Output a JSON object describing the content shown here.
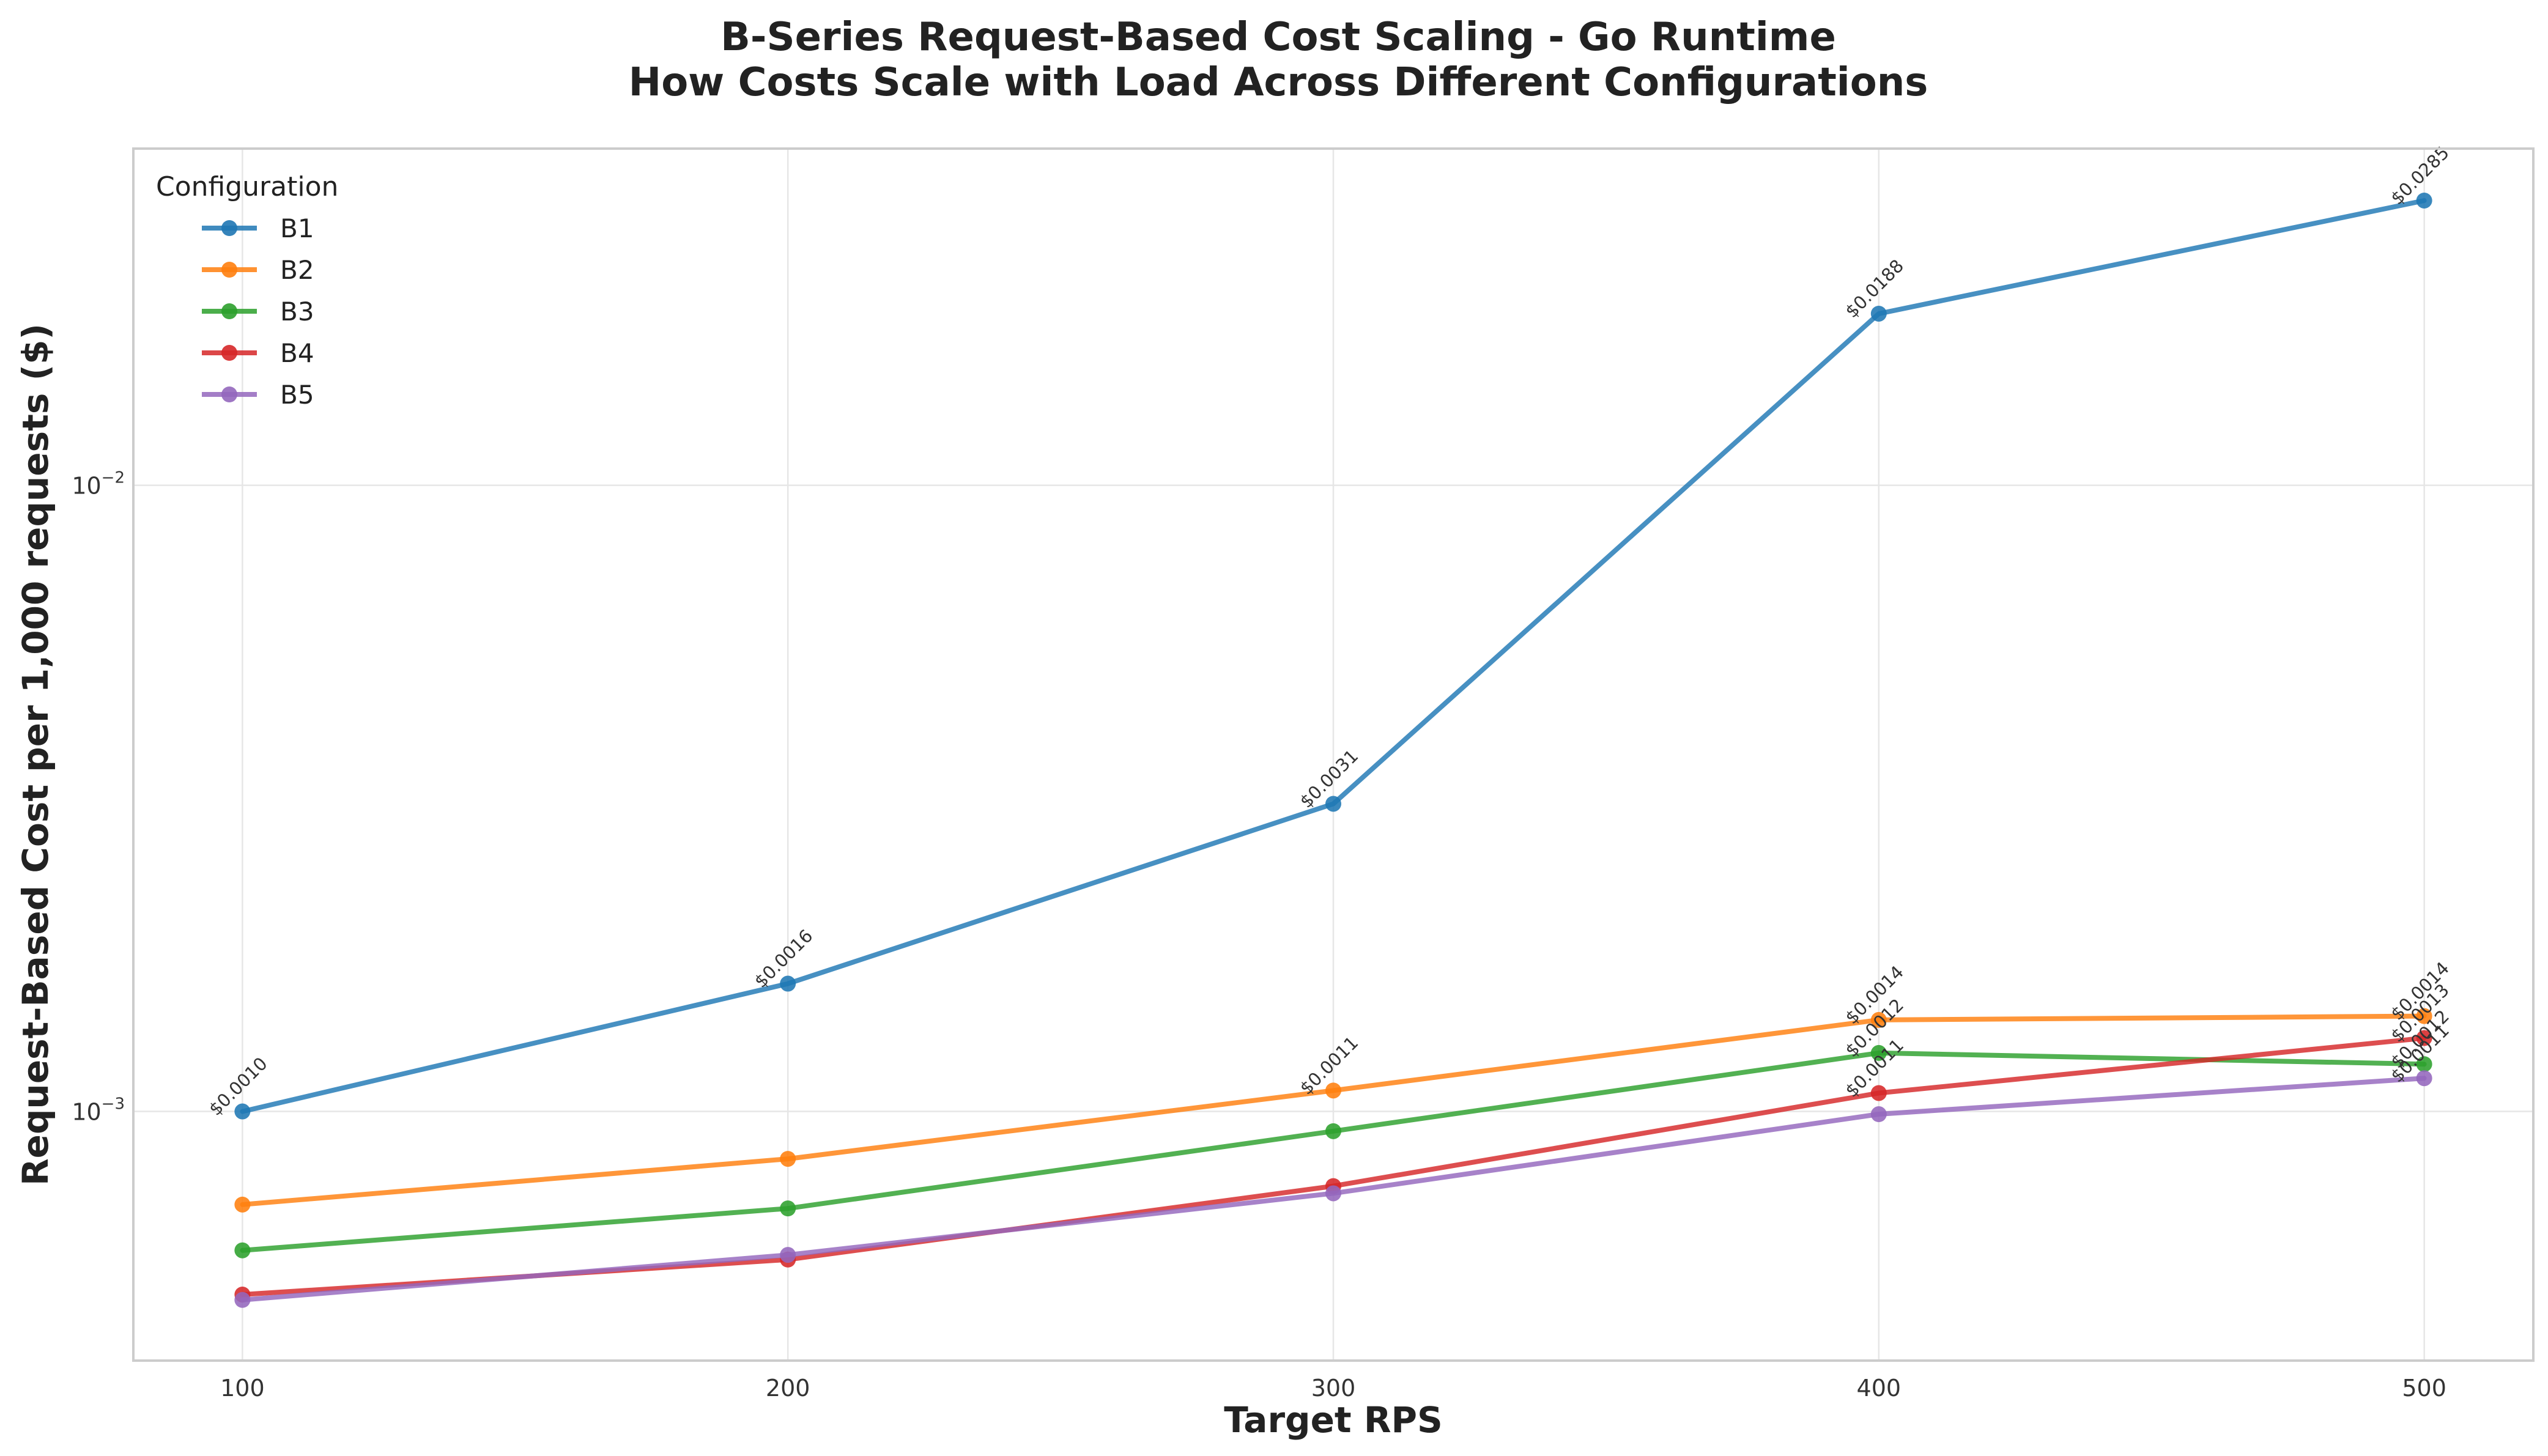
{
  "chart_data": {
    "type": "line",
    "title": "B-Series Request-Based Cost Scaling - Go Runtime",
    "subtitle": "How Costs Scale with Load Across Different Configurations",
    "xlabel": "Target RPS",
    "ylabel": "Request-Based Cost per 1,000 requests ($)",
    "x": [
      100,
      200,
      300,
      400,
      500
    ],
    "xlim": [
      80,
      520
    ],
    "ylim": [
      0.0004,
      0.0345
    ],
    "yscale": "log",
    "grid": true,
    "legend": {
      "title": "Configuration",
      "placement": "top-left"
    },
    "x_ticks": [
      {
        "value": 100,
        "label": "100"
      },
      {
        "value": 200,
        "label": "200"
      },
      {
        "value": 300,
        "label": "300"
      },
      {
        "value": 400,
        "label": "400"
      },
      {
        "value": 500,
        "label": "500"
      }
    ],
    "y_ticks": [
      {
        "value": 0.001,
        "base": "10",
        "exp": "−3"
      },
      {
        "value": 0.01,
        "base": "10",
        "exp": "−2"
      }
    ],
    "series": [
      {
        "name": "B1",
        "color": "#1f77b4",
        "values": [
          0.001,
          0.0016,
          0.0031,
          0.0188,
          0.0285
        ]
      },
      {
        "name": "B2",
        "color": "#ff7f0e",
        "values": [
          0.00071,
          0.00084,
          0.00108,
          0.0014,
          0.00142
        ]
      },
      {
        "name": "B3",
        "color": "#2ca02c",
        "values": [
          0.0006,
          0.0007,
          0.00093,
          0.00124,
          0.00119
        ]
      },
      {
        "name": "B4",
        "color": "#d62728",
        "values": [
          0.00051,
          0.00058,
          0.00076,
          0.00107,
          0.00131
        ]
      },
      {
        "name": "B5",
        "color": "#9467bd",
        "values": [
          0.0005,
          0.00059,
          0.00074,
          0.00099,
          0.00113
        ]
      }
    ],
    "annotations": [
      {
        "series": "B1",
        "x": 100,
        "text": "$0.0010"
      },
      {
        "series": "B1",
        "x": 200,
        "text": "$0.0016"
      },
      {
        "series": "B1",
        "x": 300,
        "text": "$0.0031"
      },
      {
        "series": "B1",
        "x": 400,
        "text": "$0.0188"
      },
      {
        "series": "B1",
        "x": 500,
        "text": "$0.0285"
      },
      {
        "series": "B2",
        "x": 300,
        "text": "$0.0011"
      },
      {
        "series": "B2",
        "x": 400,
        "text": "$0.0014"
      },
      {
        "series": "B2",
        "x": 500,
        "text": "$0.0014"
      },
      {
        "series": "B3",
        "x": 400,
        "text": "$0.0012"
      },
      {
        "series": "B3",
        "x": 500,
        "text": "$0.0012"
      },
      {
        "series": "B4",
        "x": 400,
        "text": "$0.0011"
      },
      {
        "series": "B4",
        "x": 500,
        "text": "$0.0013"
      },
      {
        "series": "B5",
        "x": 500,
        "text": "$0.0011"
      }
    ]
  }
}
